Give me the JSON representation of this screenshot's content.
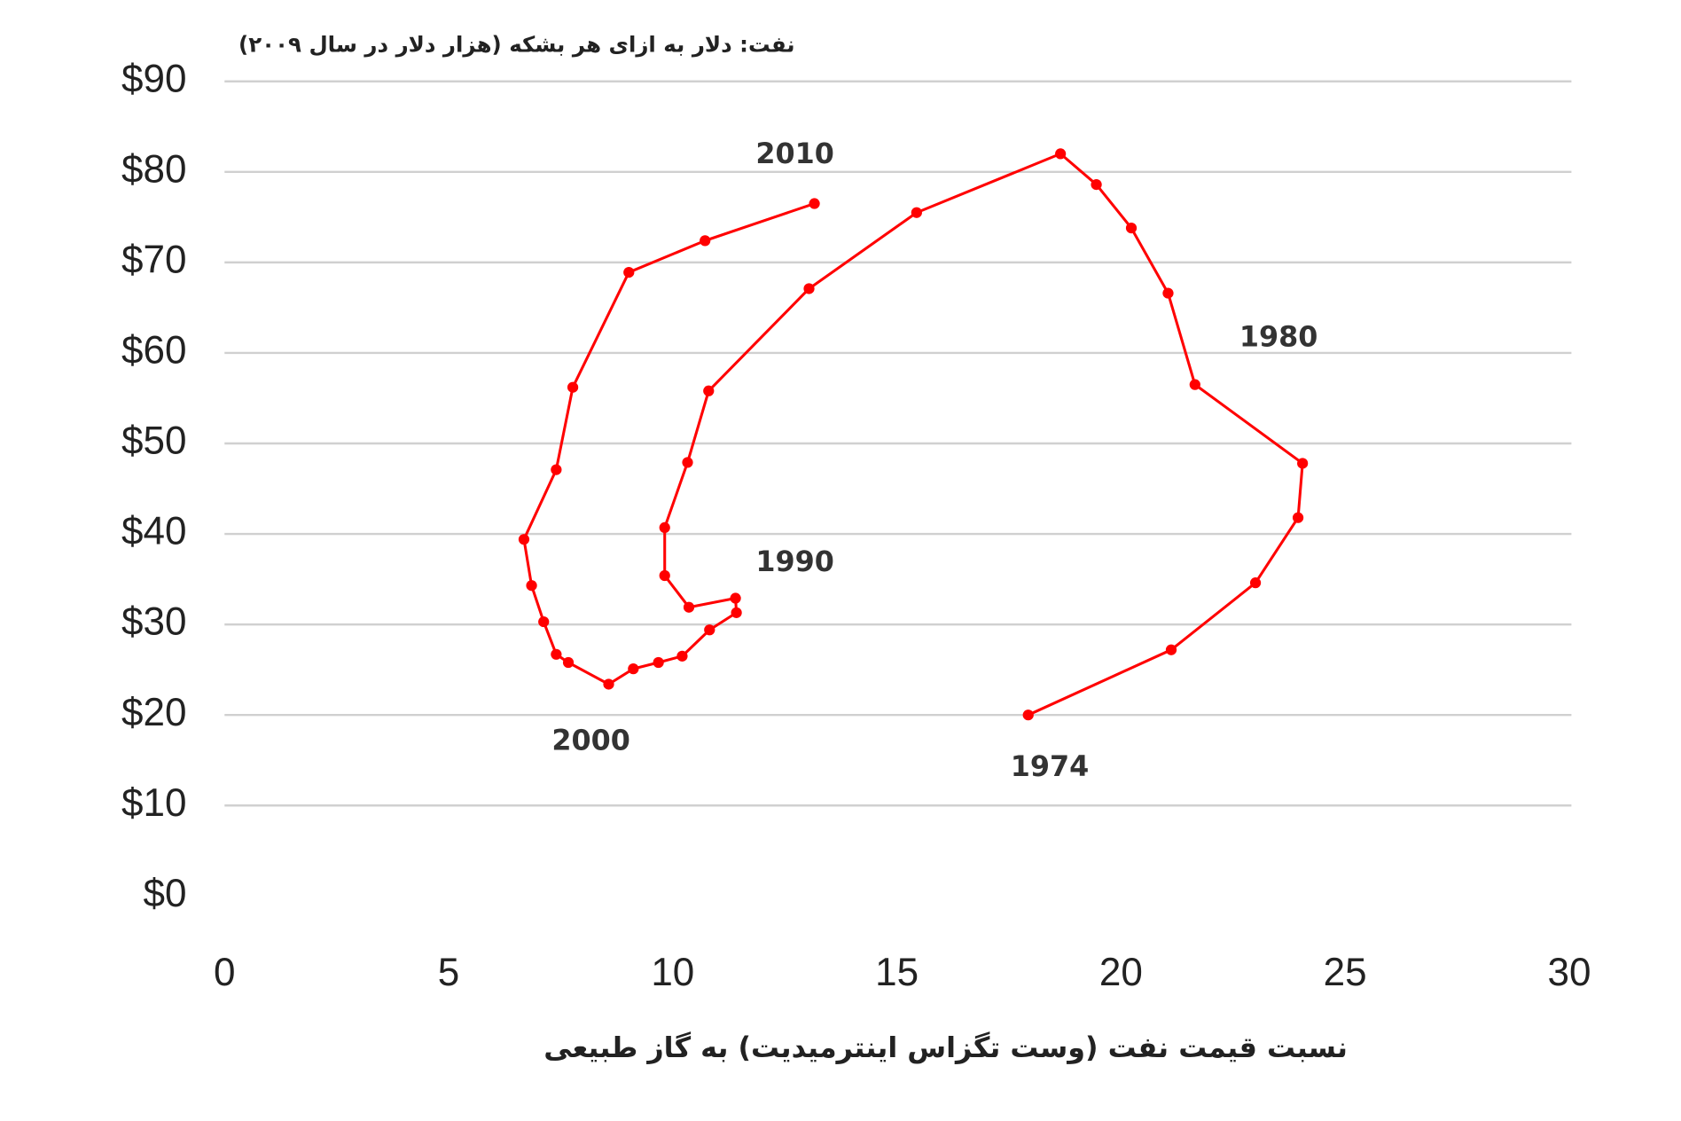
{
  "chart_data": {
    "type": "line",
    "y_axis_title": "نفت: دلار به ازای هر بشکه (هزار دلار در سال ۲۰۰۹)",
    "x_axis_title": "نسبت قیمت نفت (وست تگزاس اینترمیدیت) به گاز طبیعی",
    "annotations": [
      "2010",
      "1980",
      "1990",
      "2000",
      "1974"
    ],
    "x": [
      17.93,
      21.12,
      23.0,
      23.95,
      24.05,
      21.65,
      21.05,
      20.23,
      19.45,
      18.65,
      15.44,
      13.04,
      10.8,
      10.33,
      9.82,
      9.82,
      10.36,
      11.4,
      11.42,
      10.82,
      10.21,
      9.68,
      9.12,
      8.57,
      7.67,
      7.4,
      7.12,
      6.85,
      6.68,
      7.4,
      7.77,
      9.02,
      10.72,
      13.16
    ],
    "series": [
      {
        "color": "#ff0000",
        "values": [
          20,
          27.2,
          34.6,
          41.8,
          47.8,
          56.5,
          66.6,
          73.8,
          78.6,
          82.0,
          75.5,
          67.1,
          55.8,
          47.9,
          40.7,
          35.4,
          31.9,
          32.9,
          31.3,
          29.4,
          26.5,
          25.8,
          25.1,
          23.4,
          25.8,
          26.7,
          30.3,
          34.3,
          39.4,
          47.1,
          56.2,
          68.9,
          72.4,
          76.5
        ]
      }
    ],
    "xlim": [
      0,
      30
    ],
    "xticks": [
      0,
      5,
      10,
      15,
      20,
      25,
      30
    ],
    "ylim": [
      0,
      90
    ],
    "yticks": [
      {
        "value": 0,
        "label": "$0"
      },
      {
        "value": 10,
        "label": "$10"
      },
      {
        "value": 20,
        "label": "$20"
      },
      {
        "value": 30,
        "label": "$30"
      },
      {
        "value": 40,
        "label": "$40"
      },
      {
        "value": 50,
        "label": "$50"
      },
      {
        "value": 60,
        "label": "$60"
      },
      {
        "value": 70,
        "label": "$70"
      },
      {
        "value": 80,
        "label": "$80"
      },
      {
        "value": 90,
        "label": "$90"
      }
    ],
    "grid": true
  }
}
